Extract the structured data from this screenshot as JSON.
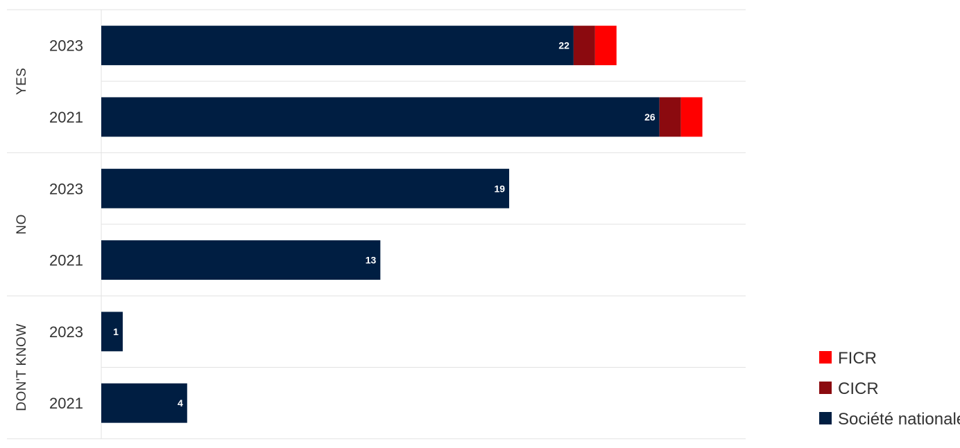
{
  "chart_data": {
    "type": "bar",
    "orientation": "horizontal",
    "stacked": true,
    "groups": [
      {
        "label": "YES",
        "categories": [
          "2023",
          "2021"
        ]
      },
      {
        "label": "NO",
        "categories": [
          "2023",
          "2021"
        ]
      },
      {
        "label": "DON'T KNOW",
        "categories": [
          "2023",
          "2021"
        ]
      }
    ],
    "series": [
      {
        "name": "Société nationale",
        "color": "#001e42",
        "values": [
          22,
          26,
          19,
          13,
          1,
          4
        ],
        "show_labels": true
      },
      {
        "name": "CICR",
        "color": "#8b0a0f",
        "values": [
          1,
          1,
          0,
          0,
          0,
          0
        ],
        "show_labels": false
      },
      {
        "name": "FICR",
        "color": "#ff0000",
        "values": [
          1,
          1,
          0,
          0,
          0,
          0
        ],
        "show_labels": false
      }
    ],
    "legend_order": [
      "FICR",
      "CICR",
      "Société nationale"
    ],
    "legend_position": "bottom-right",
    "xlim": [
      0,
      30
    ],
    "grid": "horizontal separators"
  }
}
